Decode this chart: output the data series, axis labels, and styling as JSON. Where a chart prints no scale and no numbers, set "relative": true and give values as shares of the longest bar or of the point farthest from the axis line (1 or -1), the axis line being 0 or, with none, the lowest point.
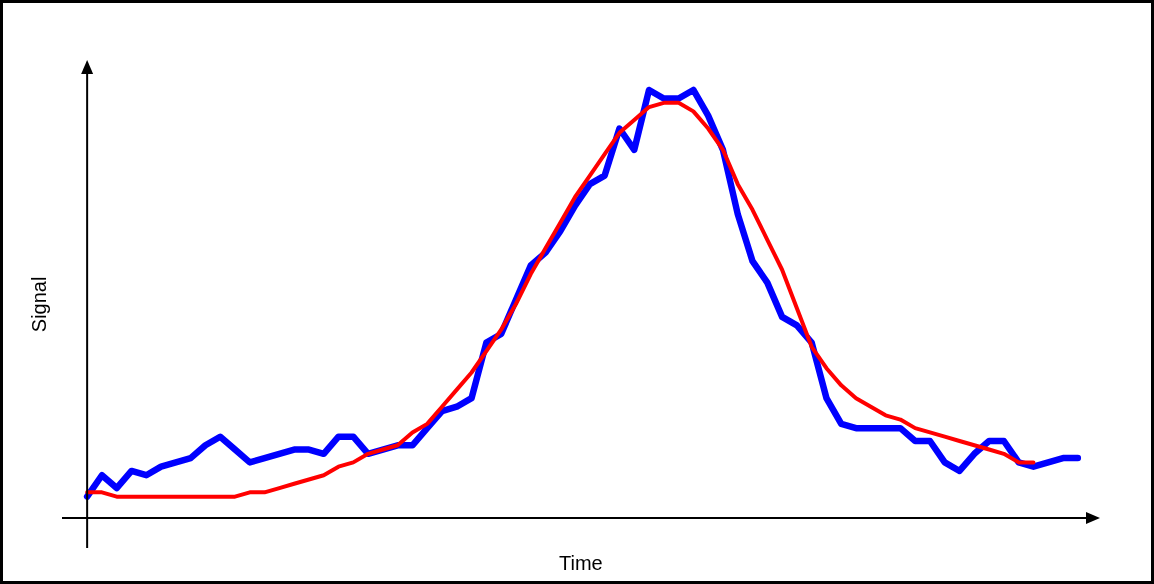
{
  "chart_data": {
    "type": "line",
    "relative": true,
    "xlabel": "Time",
    "ylabel": "Signal",
    "marker": "none",
    "line_style": "solid",
    "categories": [
      null,
      null,
      null,
      null,
      null,
      null,
      null,
      null,
      null,
      null,
      null,
      null,
      null,
      null,
      null,
      null,
      null,
      null,
      null,
      null,
      null,
      null,
      null,
      null,
      null,
      null,
      null,
      null,
      null,
      null,
      null,
      null,
      null,
      null,
      null,
      null,
      null,
      null,
      null,
      null,
      null,
      null,
      null,
      null,
      null,
      null,
      null,
      null,
      null,
      null,
      null,
      null,
      null,
      null,
      null,
      null,
      null,
      null,
      null,
      null,
      null,
      null,
      null,
      null,
      null,
      null,
      null,
      null
    ],
    "series": [
      {
        "color": "#0000ff",
        "values": [
          0.05,
          0.1,
          0.07,
          0.11,
          0.1,
          0.12,
          0.13,
          0.14,
          0.17,
          0.19,
          0.16,
          0.13,
          0.14,
          0.15,
          0.16,
          0.16,
          0.15,
          0.19,
          0.19,
          0.15,
          0.16,
          0.17,
          0.17,
          0.21,
          0.25,
          0.26,
          0.28,
          0.41,
          0.43,
          0.51,
          0.59,
          0.62,
          0.67,
          0.73,
          0.78,
          0.8,
          0.91,
          0.86,
          1.0,
          0.98,
          0.98,
          1.0,
          0.94,
          0.86,
          0.71,
          0.6,
          0.55,
          0.47,
          0.45,
          0.41,
          0.28,
          0.22,
          0.21,
          0.21,
          0.21,
          0.21,
          0.18,
          0.18,
          0.13,
          0.11,
          0.15,
          0.18,
          0.18,
          0.13,
          0.12,
          0.13,
          0.14,
          0.14
        ]
      },
      {
        "color": "#ff0000",
        "values": [
          0.06,
          0.06,
          0.05,
          0.05,
          0.05,
          0.05,
          0.05,
          0.05,
          0.05,
          0.05,
          0.05,
          0.06,
          0.06,
          0.07,
          0.08,
          0.09,
          0.1,
          0.12,
          0.13,
          0.15,
          0.16,
          0.17,
          0.2,
          0.22,
          0.26,
          0.3,
          0.34,
          0.39,
          0.44,
          0.5,
          0.57,
          0.63,
          0.69,
          0.75,
          0.8,
          0.85,
          0.9,
          0.93,
          0.96,
          0.97,
          0.97,
          0.95,
          0.91,
          0.86,
          0.78,
          0.72,
          0.65,
          0.58,
          0.49,
          0.4,
          0.35,
          0.31,
          0.28,
          0.26,
          0.24,
          0.23,
          0.21,
          0.2,
          0.19,
          0.18,
          0.17,
          0.16,
          0.15,
          0.13,
          0.13,
          null,
          null,
          null
        ]
      }
    ]
  }
}
